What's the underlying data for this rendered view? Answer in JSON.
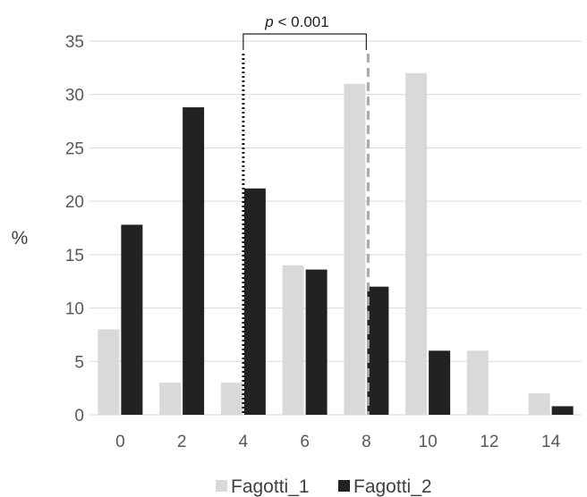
{
  "chart_data": {
    "type": "bar",
    "x": [
      0,
      2,
      4,
      6,
      8,
      10,
      12,
      14
    ],
    "xlabel": "",
    "ylabel": "%",
    "ylim": [
      0,
      35
    ],
    "yticks": [
      0,
      5,
      10,
      15,
      20,
      25,
      30,
      35
    ],
    "grid": "horizontal",
    "legend_position": "bottom",
    "series": [
      {
        "name": "Fagotti_1",
        "values": [
          8,
          3,
          3,
          14,
          31,
          32,
          6,
          2
        ],
        "color": "#d9d9d9"
      },
      {
        "name": "Fagotti_2",
        "values": [
          17.8,
          28.8,
          21.2,
          13.6,
          12,
          6,
          0,
          0.8
        ],
        "color": "#222222"
      }
    ],
    "annotations": {
      "bracket_label_italic": "p",
      "bracket_label_rest": " < 0.001",
      "reference_lines": [
        {
          "x": 4,
          "style": "dotted",
          "color": "#111111"
        },
        {
          "x": 8,
          "style": "dashed",
          "color": "#aaaaaa"
        }
      ]
    }
  }
}
